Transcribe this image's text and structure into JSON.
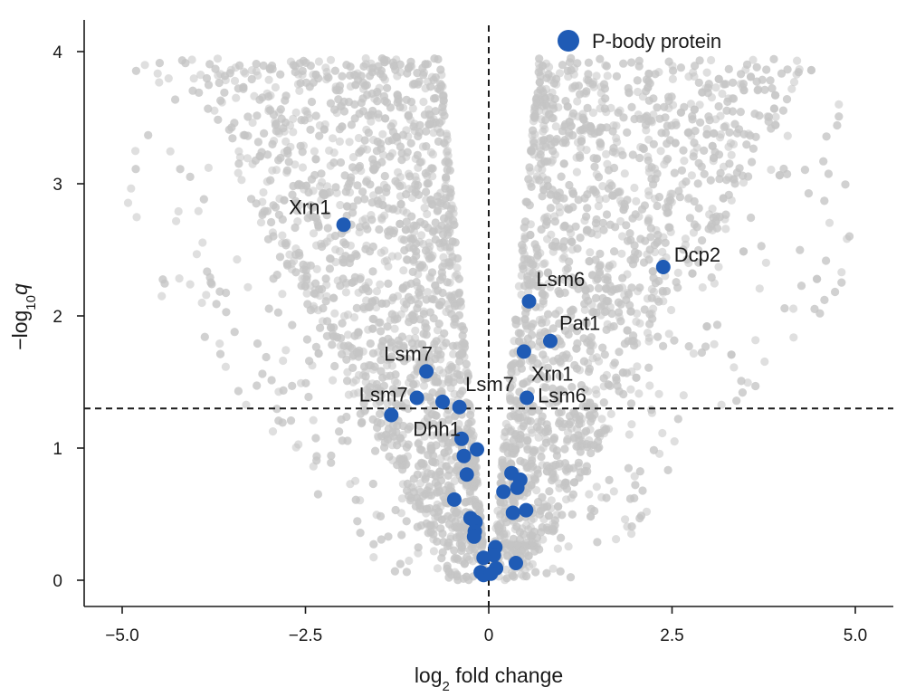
{
  "chart_data": {
    "type": "scatter",
    "title": "",
    "xlabel": {
      "base": "log",
      "sub": "2",
      "rest": " fold change"
    },
    "ylabel": {
      "prefix": "−log",
      "sub": "10",
      "var": "q"
    },
    "xlim": [
      -5.5,
      5.5
    ],
    "ylim": [
      -0.2,
      4.25
    ],
    "x_ticks": [
      -5.0,
      -2.5,
      0,
      2.5,
      5.0
    ],
    "x_tick_labels": [
      "−5.0",
      "−2.5",
      "0",
      "2.5",
      "5.0"
    ],
    "y_ticks": [
      0,
      1,
      2,
      3,
      4
    ],
    "y_tick_labels": [
      "0",
      "1",
      "2",
      "3",
      "4"
    ],
    "grid": false,
    "reference_lines": {
      "x": 0,
      "y": 1.3,
      "style": "dashed"
    },
    "legend": {
      "position": "top-center",
      "entries": [
        "P-body protein"
      ]
    },
    "colors": {
      "background_points": "#c4c4c4",
      "highlight": "#1f5bb5"
    },
    "background_series": {
      "name": "",
      "description_points": "dense gray cloud of all proteins forming a volcano shape",
      "approx_count": 5500
    },
    "series": [
      {
        "name": "P-body protein",
        "points": [
          {
            "x": -1.98,
            "y": 2.69,
            "label": "Xrn1"
          },
          {
            "x": 2.38,
            "y": 2.37,
            "label": "Dcp2"
          },
          {
            "x": 0.55,
            "y": 2.11,
            "label": "Lsm6"
          },
          {
            "x": 0.84,
            "y": 1.81,
            "label": "Pat1"
          },
          {
            "x": 0.48,
            "y": 1.73,
            "label": "Xrn1"
          },
          {
            "x": -0.85,
            "y": 1.58,
            "label": "Lsm7"
          },
          {
            "x": -0.98,
            "y": 1.38,
            "label": "Lsm7"
          },
          {
            "x": -0.63,
            "y": 1.35,
            "label": "Lsm7"
          },
          {
            "x": 0.52,
            "y": 1.38,
            "label": "Lsm6"
          },
          {
            "x": -0.4,
            "y": 1.31,
            "label": ""
          },
          {
            "x": -1.33,
            "y": 1.25,
            "label": "Dhh1"
          },
          {
            "x": -0.37,
            "y": 1.07,
            "label": ""
          },
          {
            "x": -0.16,
            "y": 0.99,
            "label": ""
          },
          {
            "x": -0.34,
            "y": 0.94,
            "label": ""
          },
          {
            "x": -0.3,
            "y": 0.8,
            "label": ""
          },
          {
            "x": 0.31,
            "y": 0.81,
            "label": ""
          },
          {
            "x": 0.43,
            "y": 0.76,
            "label": ""
          },
          {
            "x": 0.39,
            "y": 0.7,
            "label": ""
          },
          {
            "x": 0.2,
            "y": 0.67,
            "label": ""
          },
          {
            "x": -0.47,
            "y": 0.61,
            "label": ""
          },
          {
            "x": 0.51,
            "y": 0.53,
            "label": ""
          },
          {
            "x": 0.33,
            "y": 0.51,
            "label": ""
          },
          {
            "x": -0.25,
            "y": 0.47,
            "label": ""
          },
          {
            "x": -0.18,
            "y": 0.44,
            "label": ""
          },
          {
            "x": -0.19,
            "y": 0.37,
            "label": ""
          },
          {
            "x": -0.2,
            "y": 0.33,
            "label": ""
          },
          {
            "x": 0.09,
            "y": 0.25,
            "label": ""
          },
          {
            "x": 0.07,
            "y": 0.19,
            "label": ""
          },
          {
            "x": -0.07,
            "y": 0.17,
            "label": ""
          },
          {
            "x": 0.37,
            "y": 0.13,
            "label": ""
          },
          {
            "x": 0.1,
            "y": 0.09,
            "label": ""
          },
          {
            "x": -0.11,
            "y": 0.06,
            "label": ""
          },
          {
            "x": -0.07,
            "y": 0.04,
            "label": ""
          },
          {
            "x": 0.03,
            "y": 0.05,
            "label": ""
          }
        ]
      }
    ]
  }
}
